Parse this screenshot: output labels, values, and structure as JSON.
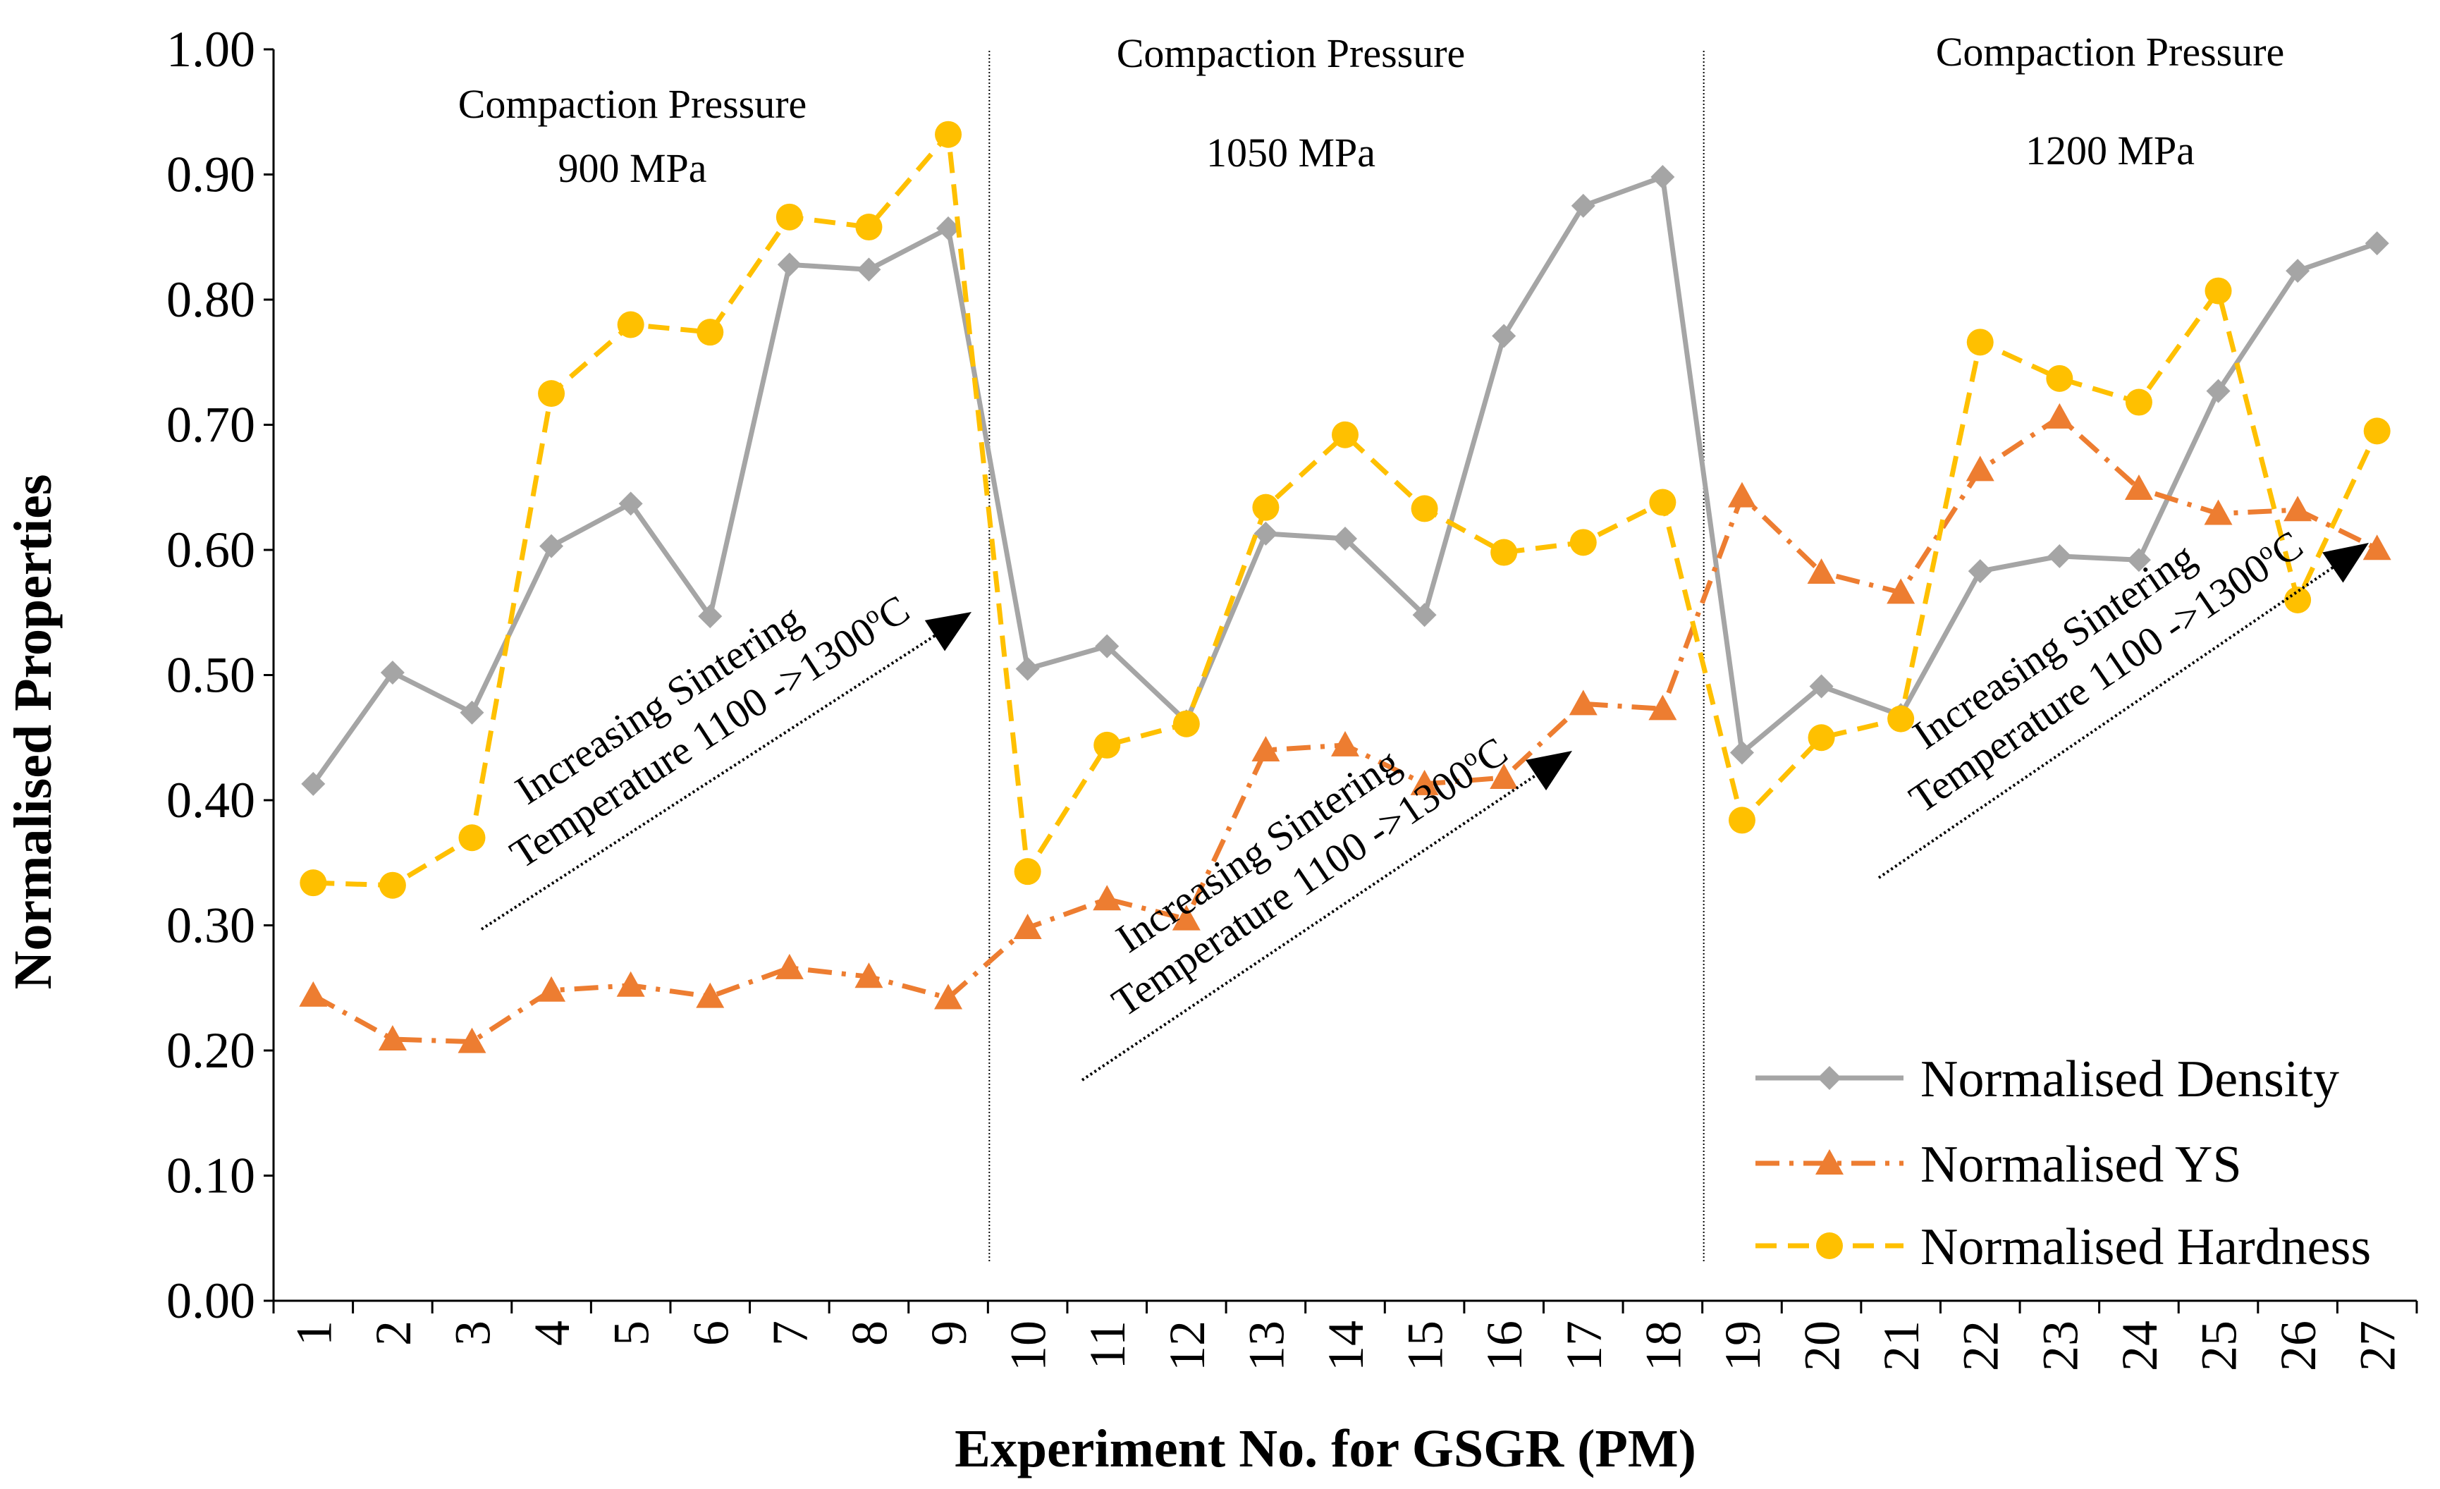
{
  "chart_data": {
    "type": "line",
    "xlabel": "Experiment No. for GSGR (PM)",
    "ylabel": "Normalised Properties",
    "ylim": [
      0,
      1
    ],
    "y_ticks": [
      "0.00",
      "0.10",
      "0.20",
      "0.30",
      "0.40",
      "0.50",
      "0.60",
      "0.70",
      "0.80",
      "0.90",
      "1.00"
    ],
    "y_tick_values": [
      0,
      0.1,
      0.2,
      0.3,
      0.4,
      0.5,
      0.6,
      0.7,
      0.8,
      0.9,
      1.0
    ],
    "categories": [
      "1",
      "2",
      "3",
      "4",
      "5",
      "6",
      "7",
      "8",
      "9",
      "10",
      "11",
      "12",
      "13",
      "14",
      "15",
      "16",
      "17",
      "18",
      "19",
      "20",
      "21",
      "22",
      "23",
      "24",
      "25",
      "26",
      "27"
    ],
    "series": [
      {
        "name": "Normalised Density",
        "color": "#a5a5a5",
        "marker": "diamond",
        "dash": "solid",
        "values": [
          0.413,
          0.502,
          0.47,
          0.603,
          0.637,
          0.547,
          0.828,
          0.824,
          0.857,
          0.505,
          0.523,
          0.463,
          0.613,
          0.609,
          0.548,
          0.771,
          0.875,
          0.898,
          0.438,
          0.491,
          0.468,
          0.583,
          0.595,
          0.592,
          0.727,
          0.823,
          0.845
        ]
      },
      {
        "name": "Normalised YS",
        "color": "#ed7d31",
        "marker": "triangle",
        "dash": "dashdot",
        "values": [
          0.244,
          0.209,
          0.207,
          0.248,
          0.252,
          0.243,
          0.266,
          0.259,
          0.242,
          0.298,
          0.321,
          0.305,
          0.44,
          0.444,
          0.413,
          0.418,
          0.477,
          0.473,
          0.643,
          0.582,
          0.566,
          0.664,
          0.706,
          0.649,
          0.629,
          0.632,
          0.601
        ]
      },
      {
        "name": "Normalised Hardness",
        "color": "#ffc000",
        "marker": "circle",
        "dash": "dashed",
        "values": [
          0.334,
          0.332,
          0.37,
          0.725,
          0.78,
          0.774,
          0.866,
          0.858,
          0.932,
          0.343,
          0.444,
          0.461,
          0.634,
          0.692,
          0.633,
          0.598,
          0.606,
          0.638,
          0.384,
          0.45,
          0.465,
          0.766,
          0.737,
          0.718,
          0.807,
          0.56,
          0.695
        ]
      }
    ],
    "groups": [
      {
        "title": "Compaction Pressure",
        "pressure": "900 MPa"
      },
      {
        "title": "Compaction Pressure",
        "pressure": "1050 MPa"
      },
      {
        "title": "Compaction Pressure",
        "pressure": "1200 MPa"
      }
    ],
    "annotations": {
      "line1": "Increasing Sintering",
      "line2": "Temperature 1100 ->1300",
      "unit": "C",
      "degree": "o"
    },
    "legend": "bottom-right",
    "grid": false
  }
}
